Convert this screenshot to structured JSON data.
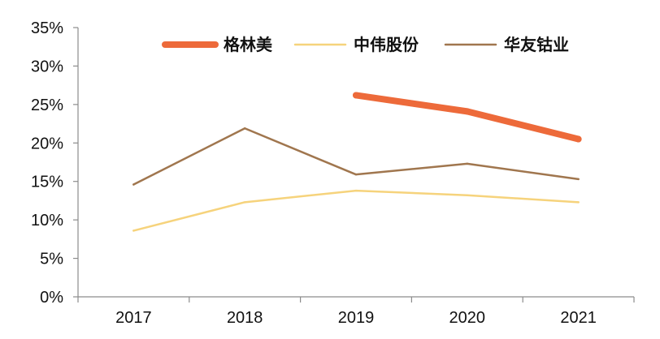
{
  "chart_data": {
    "type": "line",
    "title": "",
    "xlabel": "",
    "ylabel": "",
    "categories": [
      "2017",
      "2018",
      "2019",
      "2020",
      "2021"
    ],
    "ylim": [
      0,
      35
    ],
    "yticks": [
      0,
      5,
      10,
      15,
      20,
      25,
      30,
      35
    ],
    "ytick_labels": [
      "0%",
      "5%",
      "10%",
      "15%",
      "20%",
      "25%",
      "30%",
      "35%"
    ],
    "grid": false,
    "legend_position": "top",
    "series": [
      {
        "name": "格林美",
        "color": "#ed6a3a",
        "values": [
          null,
          null,
          26.2,
          24.1,
          20.5
        ]
      },
      {
        "name": "中伟股份",
        "color": "#f6d37c",
        "values": [
          8.6,
          12.3,
          13.8,
          13.2,
          12.3
        ]
      },
      {
        "name": "华友钴业",
        "color": "#a0764e",
        "values": [
          14.6,
          21.9,
          15.9,
          17.3,
          15.3
        ]
      }
    ]
  }
}
